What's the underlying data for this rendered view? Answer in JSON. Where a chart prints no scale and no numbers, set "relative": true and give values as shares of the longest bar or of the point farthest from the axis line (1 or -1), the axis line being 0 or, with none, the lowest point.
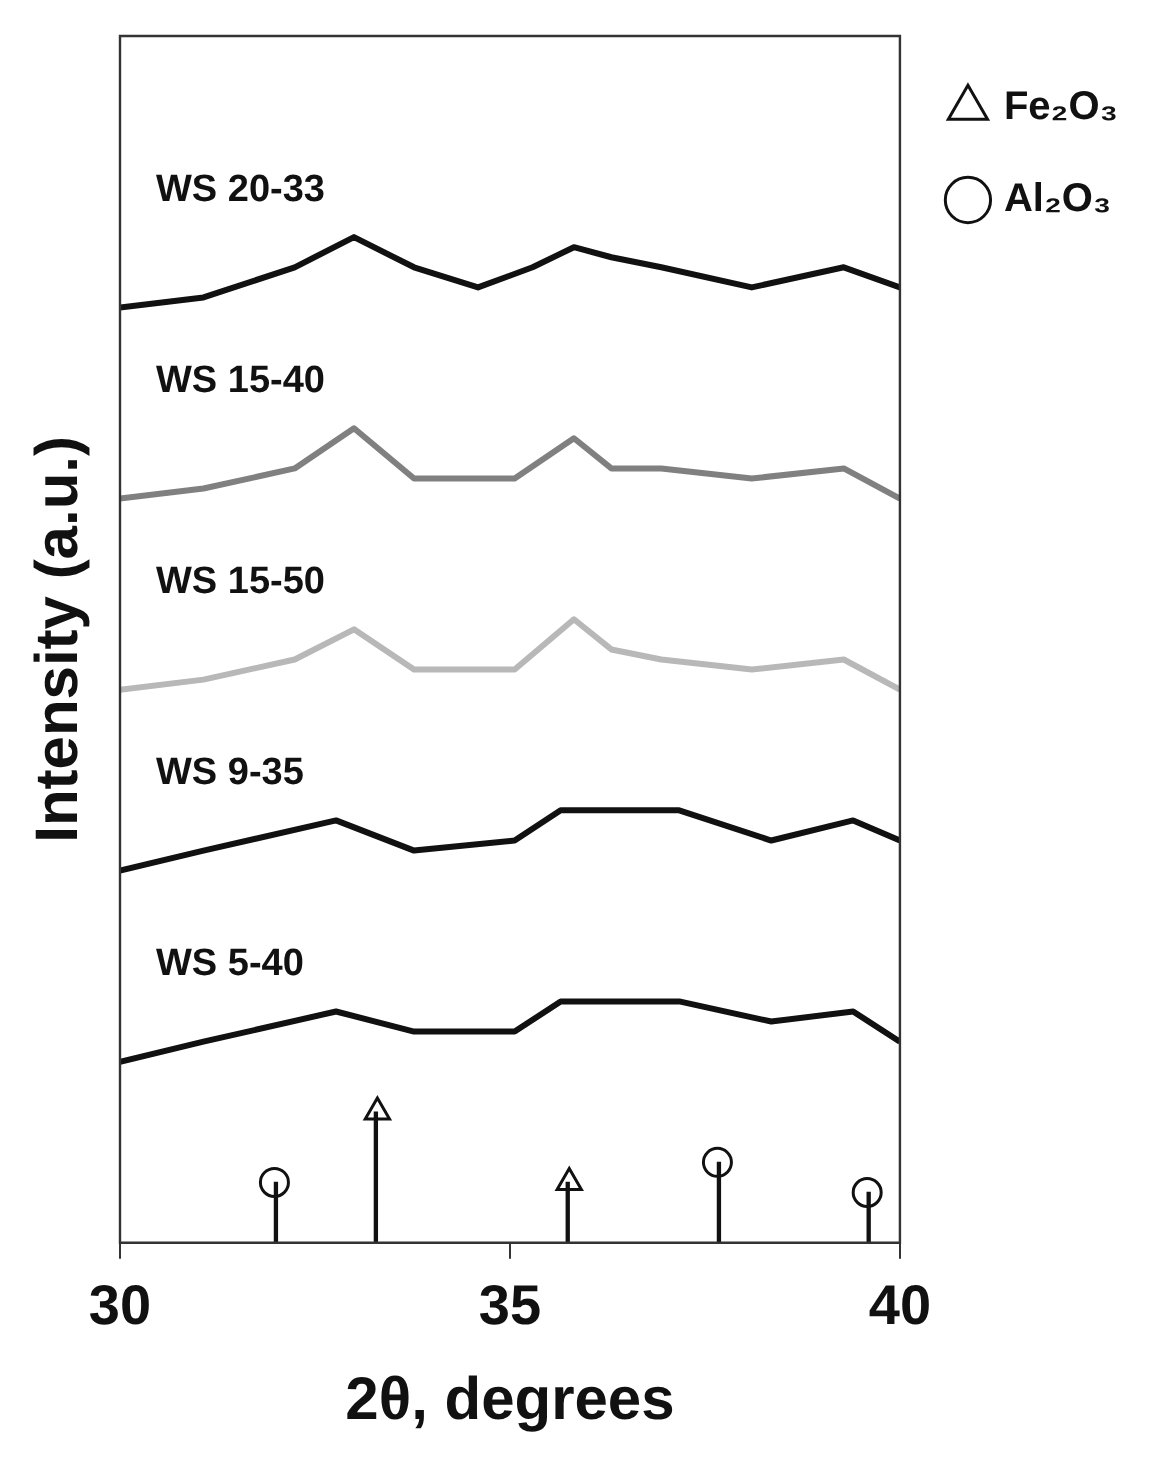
{
  "chart_data": {
    "type": "line",
    "relative": true,
    "xlabel": "2θ, degrees",
    "ylabel": "Intensity (a.u.)",
    "xlim": [
      30,
      40
    ],
    "xticks": [
      30,
      35,
      40
    ],
    "legend": "top right",
    "grid": false,
    "series": [
      {
        "name": "WS 20-33",
        "color": "#111111",
        "x": [
          30,
          31.07,
          32.24,
          33.0,
          33.77,
          34.59,
          35.29,
          35.82,
          36.3,
          36.94,
          38.1,
          39.28,
          40
        ],
        "values": [
          0.93,
          0.94,
          0.97,
          1,
          0.97,
          0.95,
          0.97,
          0.99,
          0.98,
          0.97,
          0.95,
          0.97,
          0.95
        ]
      },
      {
        "name": "WS 15-40",
        "color": "#808080",
        "x": [
          30,
          31.07,
          32.24,
          33.0,
          33.77,
          35.06,
          35.82,
          36.3,
          36.94,
          38.1,
          39.28,
          40
        ],
        "values": [
          0.74,
          0.75,
          0.77,
          0.81,
          0.76,
          0.76,
          0.8,
          0.77,
          0.77,
          0.76,
          0.77,
          0.74
        ]
      },
      {
        "name": "WS 15-50",
        "color": "#b8b8b8",
        "x": [
          30,
          31.07,
          32.24,
          33.0,
          33.77,
          35.06,
          35.82,
          36.3,
          36.94,
          38.1,
          39.28,
          40
        ],
        "values": [
          0.55,
          0.56,
          0.58,
          0.61,
          0.57,
          0.57,
          0.62,
          0.59,
          0.58,
          0.57,
          0.58,
          0.55
        ]
      },
      {
        "name": "WS 9-35",
        "color": "#111111",
        "x": [
          30,
          31.07,
          32.77,
          33.77,
          35.06,
          35.65,
          37.17,
          38.35,
          39.4,
          40
        ],
        "values": [
          0.37,
          0.39,
          0.42,
          0.39,
          0.4,
          0.43,
          0.43,
          0.4,
          0.42,
          0.4
        ]
      },
      {
        "name": "WS 5-40",
        "color": "#111111",
        "x": [
          30,
          31.07,
          32.77,
          33.77,
          35.06,
          35.65,
          37.17,
          38.35,
          39.4,
          40
        ],
        "values": [
          0.18,
          0.2,
          0.23,
          0.21,
          0.21,
          0.24,
          0.24,
          0.22,
          0.23,
          0.2
        ]
      },
      {
        "name": "Fe₂O₃",
        "type": "lollipop",
        "marker": "triangle",
        "color": "#111111",
        "x": [
          33.3,
          35.76
        ],
        "values": [
          0.13,
          0.06
        ]
      },
      {
        "name": "Al₂O₃",
        "type": "lollipop",
        "marker": "circle",
        "color": "#111111",
        "x": [
          31.98,
          37.66,
          39.58
        ],
        "values": [
          0.06,
          0.08,
          0.05
        ]
      }
    ]
  }
}
